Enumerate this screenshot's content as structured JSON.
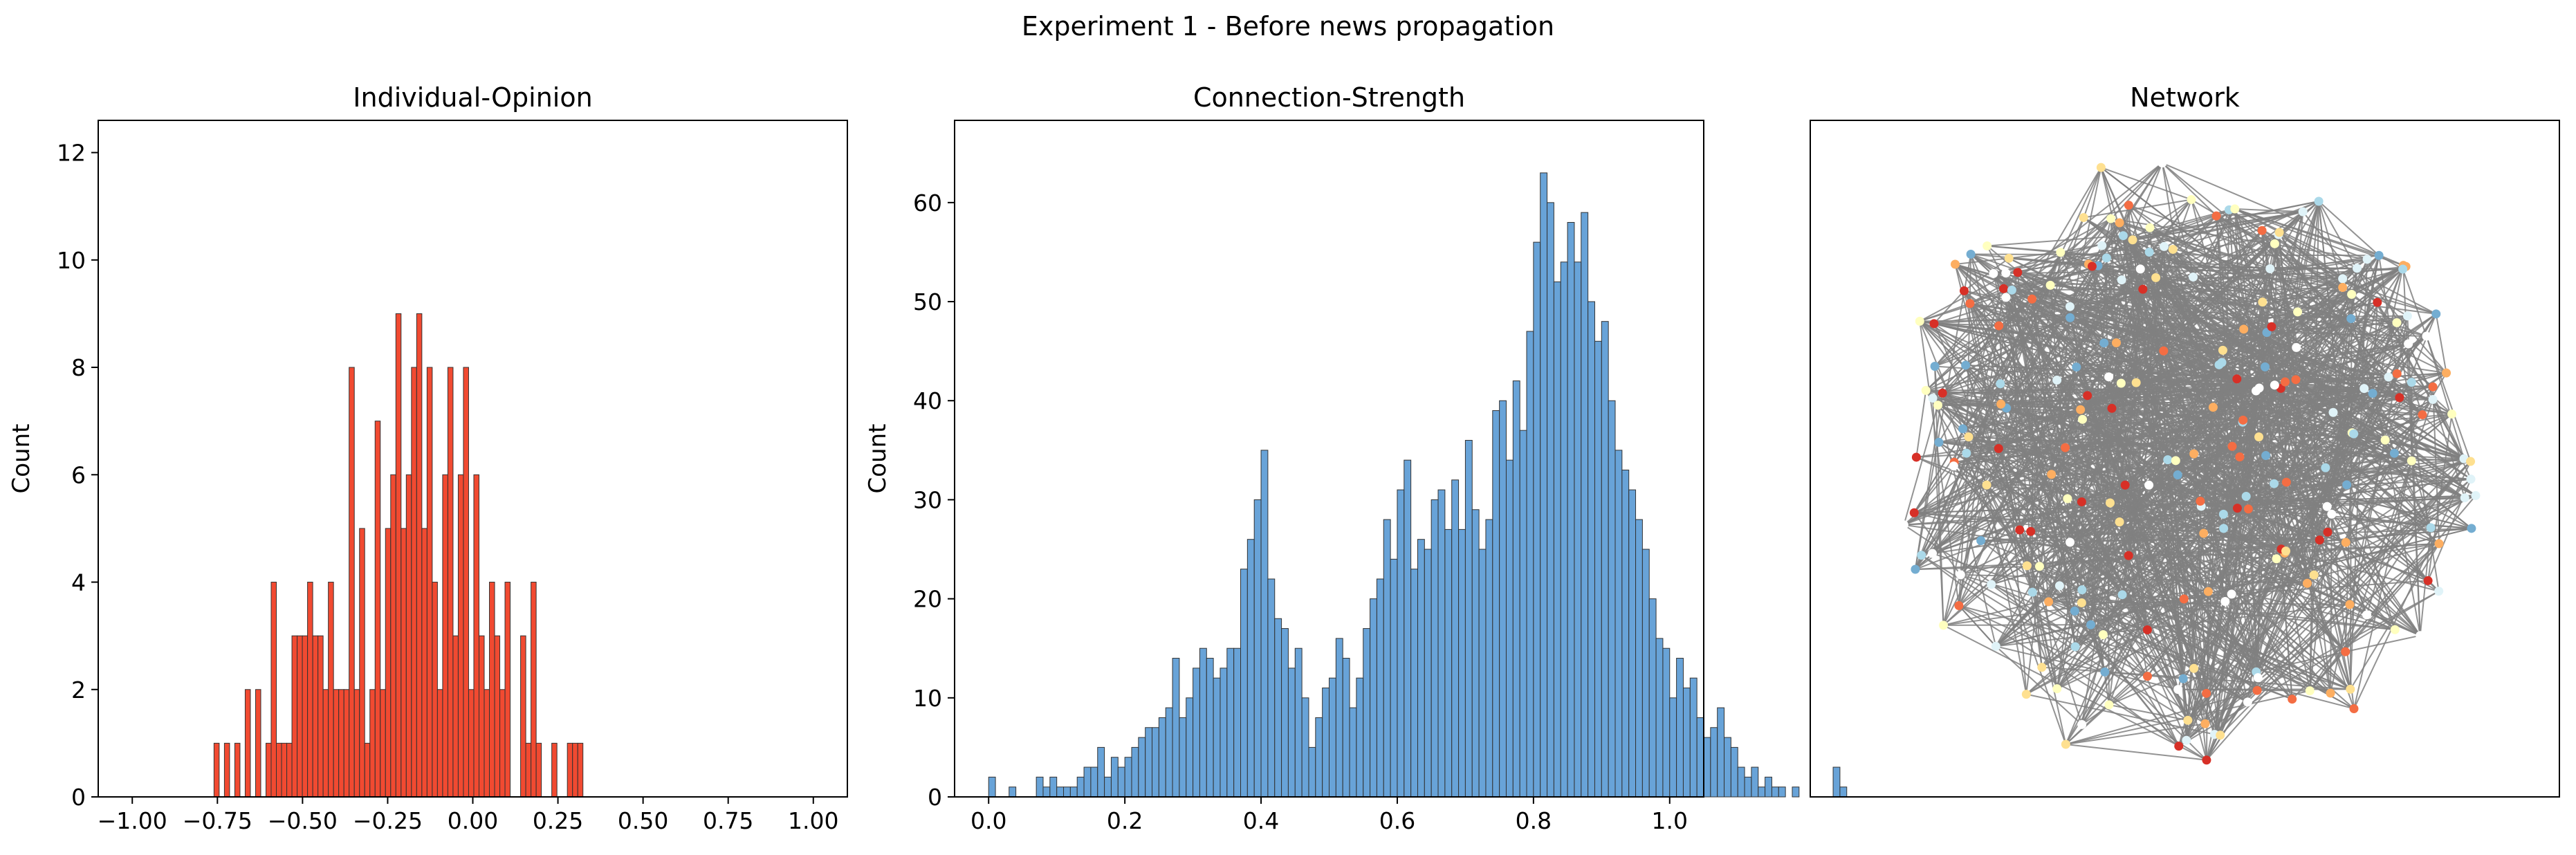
{
  "figure": {
    "title": "Experiment 1 - Before news propagation"
  },
  "colors": {
    "opinion_bar": "#f03b20",
    "strength_bar": "#5b9bd5",
    "edge": "#808080",
    "axis": "#000000"
  },
  "chart_data": [
    {
      "type": "bar",
      "title": "Individual-Opinion",
      "xlabel": "",
      "ylabel": "Count",
      "xlim": [
        -1.1,
        1.1
      ],
      "ylim": [
        0,
        12.6
      ],
      "xticks": [
        -1.0,
        -0.75,
        -0.5,
        -0.25,
        0.0,
        0.25,
        0.5,
        0.75,
        1.0
      ],
      "xtick_labels": [
        "−1.00",
        "−0.75",
        "−0.50",
        "−0.25",
        "0.00",
        "0.25",
        "0.50",
        "0.75",
        "1.00"
      ],
      "yticks": [
        0,
        2,
        4,
        6,
        8,
        10,
        12
      ],
      "ytick_labels": [
        "0",
        "2",
        "4",
        "6",
        "8",
        "10",
        "12"
      ],
      "bin_start": -0.76,
      "bin_width": 0.01526,
      "values": [
        1,
        0,
        1,
        0,
        1,
        0,
        2,
        0,
        2,
        0,
        1,
        4,
        1,
        1,
        1,
        3,
        3,
        3,
        4,
        3,
        3,
        2,
        4,
        2,
        2,
        2,
        8,
        2,
        5,
        1,
        2,
        7,
        2,
        5,
        6,
        9,
        5,
        6,
        8,
        9,
        5,
        8,
        4,
        2,
        6,
        8,
        3,
        6,
        8,
        2,
        6,
        3,
        2,
        4,
        3,
        2,
        4,
        0,
        0,
        3,
        1,
        4,
        1,
        0,
        0,
        1,
        0,
        0,
        1,
        1,
        1
      ],
      "grid": false
    },
    {
      "type": "bar",
      "title": "Connection-Strength",
      "xlabel": "",
      "ylabel": "Count",
      "xlim": [
        -0.05,
        1.05
      ],
      "ylim": [
        0,
        68.3
      ],
      "xticks": [
        0.0,
        0.2,
        0.4,
        0.6,
        0.8,
        1.0
      ],
      "xtick_labels": [
        "0.0",
        "0.2",
        "0.4",
        "0.6",
        "0.8",
        "1.0"
      ],
      "yticks": [
        0,
        10,
        20,
        30,
        40,
        50,
        60
      ],
      "ytick_labels": [
        "0",
        "10",
        "20",
        "30",
        "40",
        "50",
        "60"
      ],
      "bin_start": 0.0,
      "bin_width": 0.01,
      "values": [
        2,
        0,
        0,
        1,
        0,
        0,
        0,
        2,
        1,
        2,
        1,
        1,
        1,
        2,
        3,
        3,
        5,
        2,
        4,
        3,
        4,
        5,
        6,
        7,
        7,
        8,
        9,
        14,
        8,
        10,
        13,
        15,
        14,
        12,
        13,
        15,
        15,
        23,
        26,
        30,
        35,
        22,
        18,
        17,
        13,
        15,
        10,
        5,
        8,
        11,
        12,
        16,
        14,
        9,
        12,
        17,
        20,
        22,
        28,
        24,
        31,
        34,
        23,
        26,
        25,
        30,
        31,
        27,
        32,
        27,
        36,
        29,
        25,
        28,
        39,
        40,
        34,
        42,
        37,
        47,
        56,
        63,
        60,
        52,
        54,
        58,
        54,
        59,
        50,
        46,
        48,
        40,
        35,
        33,
        31,
        28,
        25,
        20,
        16,
        15,
        10,
        14,
        11,
        12,
        8,
        6,
        7,
        9,
        6,
        5,
        3,
        2,
        3,
        1,
        2,
        1,
        1,
        0,
        1,
        0,
        0,
        0,
        0,
        0,
        3,
        1
      ],
      "grid": false
    }
  ],
  "network": {
    "title": "Network",
    "node_count": 250,
    "node_palette": [
      "#d73027",
      "#f46d43",
      "#fdae61",
      "#fee090",
      "#ffffbf",
      "#e0f3f8",
      "#abd9e9",
      "#74add1",
      "#ffffff"
    ]
  }
}
